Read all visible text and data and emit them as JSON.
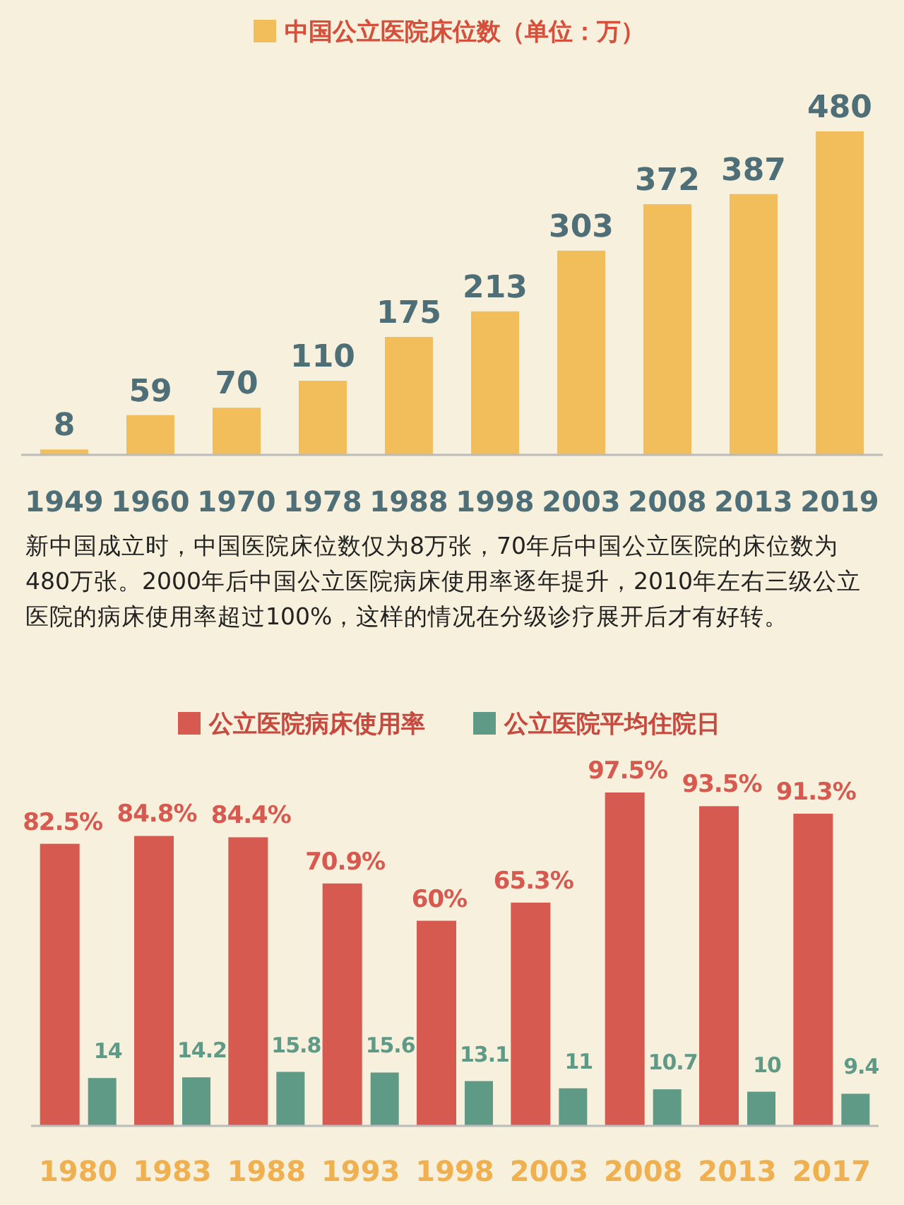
{
  "chart_data": [
    {
      "type": "bar",
      "categories": [
        "1949",
        "1960",
        "1970",
        "1978",
        "1988",
        "1998",
        "2003",
        "2008",
        "2013",
        "2019"
      ],
      "series": [
        {
          "name": "中国公立医院床位数（单位：万）",
          "color": "#f2be5c",
          "values": [
            8,
            59,
            70,
            110,
            175,
            213,
            303,
            372,
            387,
            480
          ]
        }
      ],
      "data_labels": true,
      "legend": "top",
      "grid": false,
      "annotations": [
        "新中国成立时，中国医院床位数仅为8万张，70年后中国公立医院的床位数为480万张。2000年后中国公立医院病床使用率逐年提升，2010年左右三级公立医院的病床使用率超过100%，这样的情况在分级诊疗展开后才有好转。"
      ]
    },
    {
      "type": "bar",
      "categories": [
        "1980",
        "1983",
        "1988",
        "1993",
        "1998",
        "2003",
        "2008",
        "2013",
        "2017"
      ],
      "series": [
        {
          "name": "公立医院病床使用率",
          "color": "#d65a4f",
          "values": [
            82.5,
            84.8,
            84.4,
            70.9,
            60,
            65.3,
            97.5,
            93.5,
            91.3
          ],
          "value_labels": [
            "82.5%",
            "84.8%",
            "84.4%",
            "70.9%",
            "60%",
            "65.3%",
            "97.5%",
            "93.5%",
            "91.3%"
          ]
        },
        {
          "name": "公立医院平均住院日",
          "color": "#5e9a86",
          "values": [
            14,
            14.2,
            15.8,
            15.6,
            13.1,
            11,
            10.7,
            10,
            9.4
          ],
          "value_labels": [
            "14",
            "14.2",
            "15.8",
            "15.6",
            "13.1",
            "11",
            "10.7",
            "10",
            "9.4"
          ]
        }
      ],
      "legend": "top",
      "grid": false
    }
  ]
}
